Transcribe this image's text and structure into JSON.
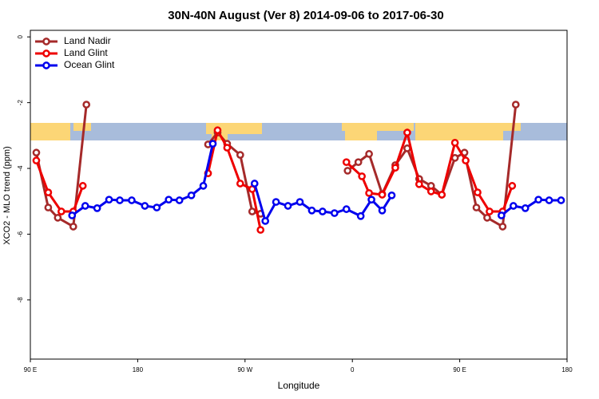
{
  "chart_data": {
    "type": "line",
    "title": "30N-40N August (Ver 8)   2014-09-06 to 2017-06-30",
    "xlabel": "Longitude",
    "ylabel": "XCO2 - MLO trend (ppm)",
    "xlim": [
      90,
      540
    ],
    "ylim": [
      -9.8,
      0.2
    ],
    "xticks": [
      {
        "value": 90,
        "label": "90 E"
      },
      {
        "value": 180,
        "label": "180"
      },
      {
        "value": 270,
        "label": "90 W"
      },
      {
        "value": 360,
        "label": "0"
      },
      {
        "value": 450,
        "label": "90 E"
      },
      {
        "value": 540,
        "label": "180"
      }
    ],
    "yticks": [
      0,
      -2,
      -4,
      -6,
      -8
    ],
    "legend": "top-left",
    "series": [
      {
        "name": "Land Nadir",
        "color": "#a52a2a",
        "x": [
          95,
          105,
          113,
          126,
          137,
          null,
          239,
          247,
          255,
          266,
          276,
          283,
          null,
          356,
          365,
          374,
          385,
          396,
          406,
          416,
          426,
          435,
          446,
          454,
          464,
          473,
          486,
          497
        ],
        "values": [
          -3.52,
          -5.19,
          -5.5,
          -5.77,
          -2.06,
          null,
          -3.27,
          -2.91,
          -3.25,
          -3.59,
          -5.31,
          -5.38,
          null,
          -4.07,
          -3.81,
          -3.56,
          -4.78,
          -3.9,
          -3.39,
          -4.32,
          -4.53,
          -4.8,
          -3.68,
          -3.52,
          -5.19,
          -5.5,
          -5.77,
          -2.06
        ]
      },
      {
        "name": "Land Glint",
        "color": "#ee0000",
        "x": [
          95,
          105,
          116,
          126,
          134,
          null,
          239,
          247,
          255,
          266,
          276,
          283,
          null,
          355,
          368,
          374,
          385,
          396,
          406,
          416,
          426,
          435,
          446,
          455,
          465,
          475,
          486,
          494
        ],
        "values": [
          -3.76,
          -4.73,
          -5.31,
          -5.31,
          -4.53,
          null,
          -4.15,
          -2.84,
          -3.37,
          -4.46,
          -4.63,
          -5.87,
          null,
          -3.81,
          -4.24,
          -4.75,
          -4.8,
          -3.98,
          -2.91,
          -4.48,
          -4.7,
          -4.8,
          -3.22,
          -3.76,
          -4.73,
          -5.31,
          -5.31,
          -4.53
        ]
      },
      {
        "name": "Ocean Glint",
        "color": "#0000ee",
        "x": [
          125,
          136,
          146,
          156,
          165,
          175,
          186,
          196,
          206,
          215,
          225,
          235,
          243,
          null,
          278,
          287,
          296,
          306,
          316,
          326,
          335,
          345,
          355,
          367,
          376,
          385,
          393,
          null,
          485,
          495,
          505,
          516,
          525,
          535
        ],
        "values": [
          -5.43,
          -5.14,
          -5.21,
          -4.95,
          -4.97,
          -4.97,
          -5.14,
          -5.19,
          -4.95,
          -4.97,
          -4.82,
          -4.53,
          -3.25,
          null,
          -4.46,
          -5.6,
          -5.02,
          -5.14,
          -5.02,
          -5.28,
          -5.31,
          -5.36,
          -5.24,
          -5.45,
          -4.95,
          -5.28,
          -4.82,
          null,
          -5.43,
          -5.14,
          -5.21,
          -4.95,
          -4.97,
          -4.97
        ]
      }
    ]
  }
}
